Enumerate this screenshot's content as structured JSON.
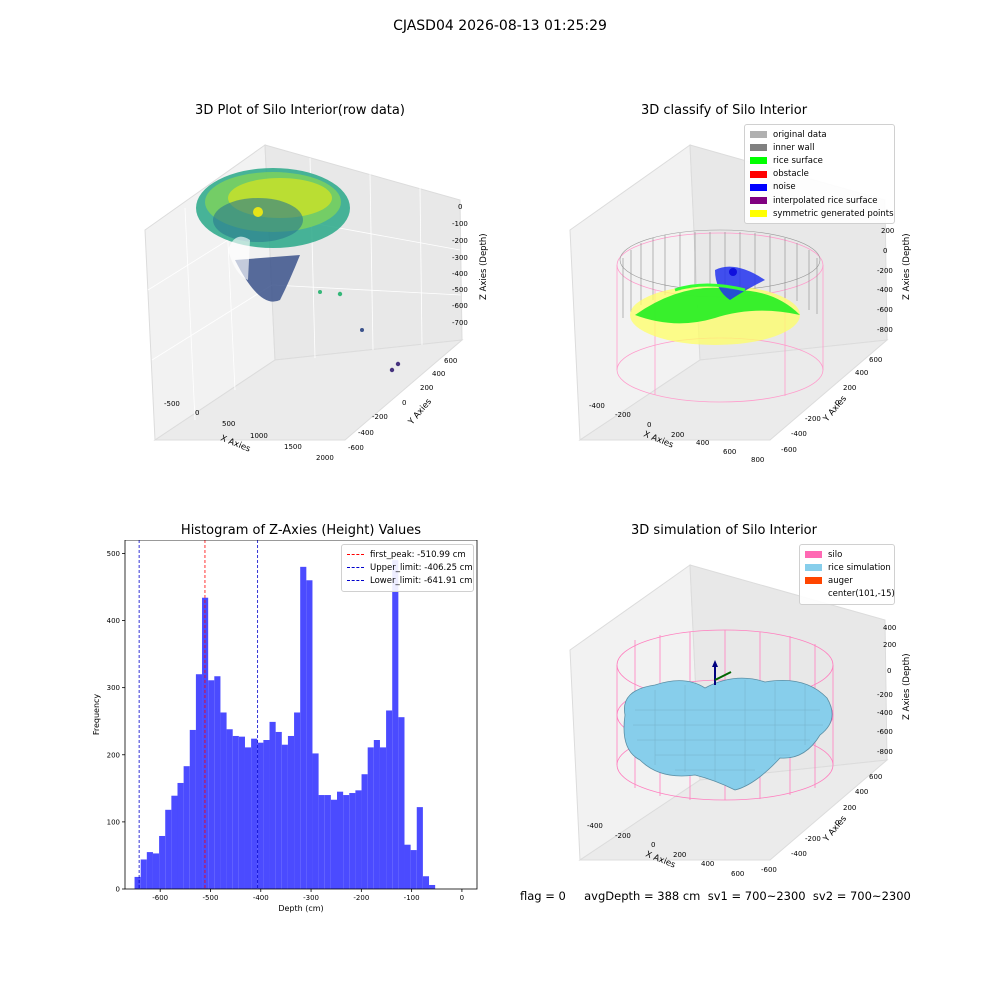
{
  "suptitle": "CJASD04 2026-08-13 01:25:29",
  "status_text": "flag = 0     avgDepth = 388 cm  sv1 = 700~2300  sv2 = 700~2300",
  "panel1": {
    "title": "3D Plot of Silo Interior(row data)",
    "xlabel": "X Axies",
    "ylabel": "Y Axies",
    "zlabel": "Z Axies (Depth)",
    "xticks": [
      "-500",
      "0",
      "500",
      "1000",
      "1500",
      "2000"
    ],
    "yticks": [
      "-600",
      "-400",
      "-200",
      "0",
      "200",
      "400",
      "600"
    ],
    "zticks": [
      "0",
      "-100",
      "-200",
      "-300",
      "-400",
      "-500",
      "-600",
      "-700"
    ]
  },
  "panel2": {
    "title": "3D classify of Silo Interior",
    "xlabel": "X Axies",
    "ylabel": "Y Axies",
    "zlabel": "Z Axies (Depth)",
    "xticks": [
      "-400",
      "-200",
      "0",
      "200",
      "400",
      "600",
      "800"
    ],
    "yticks": [
      "-600",
      "-400",
      "-200",
      "0",
      "200",
      "400",
      "600"
    ],
    "zticks": [
      "200",
      "0",
      "-200",
      "-400",
      "-600",
      "-800"
    ],
    "legend": [
      {
        "label": "original data",
        "color": "#b0b0b0"
      },
      {
        "label": "inner wall",
        "color": "#808080"
      },
      {
        "label": "rice surface",
        "color": "#00ff00"
      },
      {
        "label": "obstacle",
        "color": "#ff0000"
      },
      {
        "label": "noise",
        "color": "#0000ff"
      },
      {
        "label": "interpolated rice surface",
        "color": "#800080"
      },
      {
        "label": "symmetric generated points",
        "color": "#ffff00"
      }
    ]
  },
  "panel4": {
    "title": "3D simulation of Silo Interior",
    "xlabel": "X Axies",
    "ylabel": "Y Axies",
    "zlabel": "Z Axies (Depth)",
    "xticks": [
      "-400",
      "-200",
      "0",
      "200",
      "400",
      "600"
    ],
    "yticks": [
      "-600",
      "-400",
      "-200",
      "0",
      "200",
      "400",
      "600"
    ],
    "zticks": [
      "400",
      "200",
      "0",
      "-200",
      "-400",
      "-600",
      "-800"
    ],
    "legend": [
      {
        "label": "silo",
        "color": "#ff69b4"
      },
      {
        "label": "rice simulation",
        "color": "#87ceeb"
      },
      {
        "label": "auger",
        "color": "#ff4500"
      },
      {
        "label": "center(101,-15)",
        "color": ""
      }
    ]
  },
  "chart_data": [
    {
      "type": "histogram",
      "title": "Histogram of Z-Axies (Height) Values",
      "xlabel": "Depth (cm)",
      "ylabel": "Frequency",
      "bar_color": "#4b4bff",
      "bin_start": -651,
      "bin_width": 12.2,
      "values": [
        18,
        44,
        55,
        53,
        79,
        118,
        139,
        158,
        183,
        237,
        320,
        434,
        311,
        317,
        263,
        238,
        228,
        227,
        211,
        224,
        218,
        222,
        249,
        234,
        215,
        228,
        263,
        480,
        460,
        202,
        140,
        140,
        133,
        145,
        140,
        143,
        147,
        171,
        211,
        222,
        211,
        266,
        490,
        256,
        66,
        58,
        122,
        19,
        6
      ],
      "xticks": [
        -600,
        -500,
        -400,
        -300,
        -200,
        -100,
        0
      ],
      "yticks": [
        0,
        100,
        200,
        300,
        400,
        500
      ],
      "xlim": [
        -670,
        30
      ],
      "ylim": [
        0,
        520
      ],
      "vlines": [
        {
          "label": "first_peak: -510.99 cm",
          "x": -510.99,
          "color": "#ff0000"
        },
        {
          "label": "Upper_limit: -406.25 cm",
          "x": -406.25,
          "color": "#0000cc"
        },
        {
          "label": "Lower_limit: -641.91 cm",
          "x": -641.91,
          "color": "#0000cc"
        }
      ],
      "legend_position": "top-right"
    }
  ]
}
